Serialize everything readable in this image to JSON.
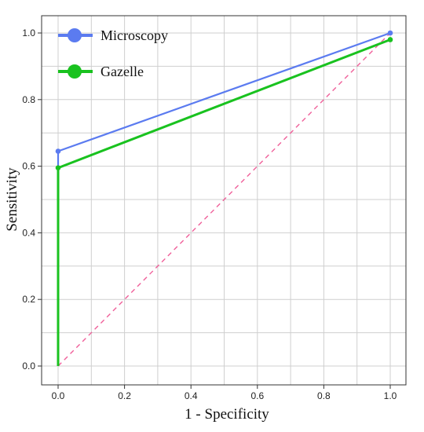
{
  "chart_data": {
    "type": "line",
    "title": "",
    "xlabel": "1 - Specificity",
    "ylabel": "Sensitivity",
    "xlim": [
      0.0,
      1.0
    ],
    "ylim": [
      0.0,
      1.0
    ],
    "grid": true,
    "legend_position": "top-left",
    "x_ticks": [
      "0.0",
      "0.2",
      "0.4",
      "0.6",
      "0.8",
      "1.0"
    ],
    "y_ticks": [
      "0.0",
      "0.2",
      "0.4",
      "0.6",
      "0.8",
      "1.0"
    ],
    "series": [
      {
        "name": "Microscopy",
        "color": "#5b7bf0",
        "style": "solid",
        "points": [
          [
            0.0,
            0.0
          ],
          [
            0.0,
            0.645
          ],
          [
            1.0,
            1.0
          ]
        ]
      },
      {
        "name": "Gazelle",
        "color": "#19c21f",
        "style": "solid",
        "points": [
          [
            0.0,
            0.0
          ],
          [
            0.0,
            0.595
          ],
          [
            1.0,
            0.98
          ]
        ]
      }
    ],
    "reference_line": {
      "color": "#f0609a",
      "style": "dashed",
      "points": [
        [
          0.0,
          0.0
        ],
        [
          1.0,
          1.0
        ]
      ]
    }
  }
}
